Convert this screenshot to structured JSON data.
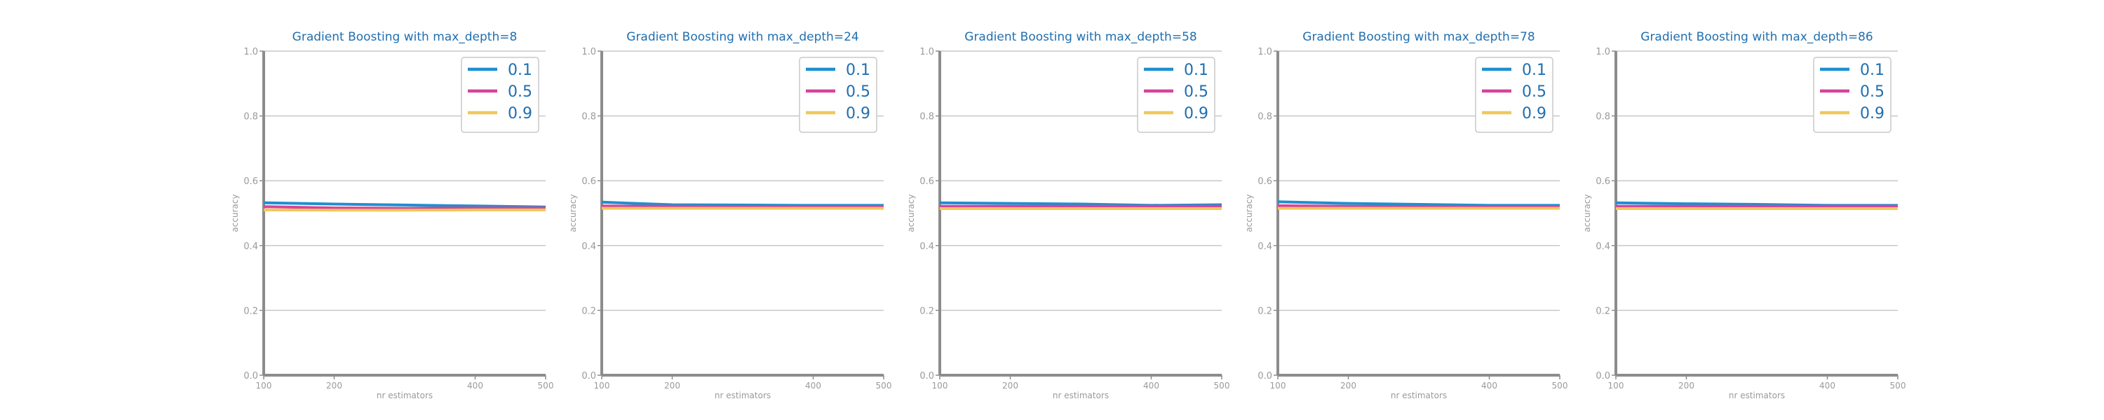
{
  "colors": {
    "title": "#1f6fb0",
    "tick": "#9a9a9a",
    "axis": "#8c8c8c",
    "grid": "#c8c8c8",
    "legend_text": "#1f6fb0",
    "legend_border": "#c9c9c9"
  },
  "chart_data": [
    {
      "type": "line",
      "title": "Gradient Boosting with max_depth=8",
      "xlabel": "nr estimators",
      "ylabel": "accuracy",
      "x": [
        100,
        200,
        300,
        400,
        500
      ],
      "xticks": [
        100,
        200,
        400,
        500
      ],
      "yticks": [
        "0.0",
        "0.2",
        "0.4",
        "0.6",
        "0.8",
        "1.0"
      ],
      "xlim": [
        100,
        500
      ],
      "ylim": [
        0,
        1
      ],
      "grid": "horizontal",
      "legend_position": "top-right",
      "series": [
        {
          "name": "0.1",
          "color": "#1f8fd0",
          "values": [
            0.532,
            0.528,
            0.525,
            0.522,
            0.519
          ]
        },
        {
          "name": "0.5",
          "color": "#d6449a",
          "values": [
            0.52,
            0.516,
            0.515,
            0.516,
            0.516
          ]
        },
        {
          "name": "0.9",
          "color": "#f0c85a",
          "values": [
            0.51,
            0.509,
            0.509,
            0.51,
            0.51
          ]
        }
      ]
    },
    {
      "type": "line",
      "title": "Gradient Boosting with max_depth=24",
      "xlabel": "nr estimators",
      "ylabel": "accuracy",
      "x": [
        100,
        200,
        300,
        400,
        500
      ],
      "xticks": [
        100,
        200,
        400,
        500
      ],
      "yticks": [
        "0.0",
        "0.2",
        "0.4",
        "0.6",
        "0.8",
        "1.0"
      ],
      "xlim": [
        100,
        500
      ],
      "ylim": [
        0,
        1
      ],
      "grid": "horizontal",
      "legend_position": "top-right",
      "series": [
        {
          "name": "0.1",
          "color": "#1f8fd0",
          "values": [
            0.534,
            0.526,
            0.525,
            0.524,
            0.524
          ]
        },
        {
          "name": "0.5",
          "color": "#d6449a",
          "values": [
            0.522,
            0.521,
            0.52,
            0.52,
            0.52
          ]
        },
        {
          "name": "0.9",
          "color": "#f0c85a",
          "values": [
            0.515,
            0.515,
            0.515,
            0.515,
            0.515
          ]
        }
      ]
    },
    {
      "type": "line",
      "title": "Gradient Boosting with max_depth=58",
      "xlabel": "nr estimators",
      "ylabel": "accuracy",
      "x": [
        100,
        200,
        300,
        400,
        500
      ],
      "xticks": [
        100,
        200,
        400,
        500
      ],
      "yticks": [
        "0.0",
        "0.2",
        "0.4",
        "0.6",
        "0.8",
        "1.0"
      ],
      "xlim": [
        100,
        500
      ],
      "ylim": [
        0,
        1
      ],
      "grid": "horizontal",
      "legend_position": "top-right",
      "series": [
        {
          "name": "0.1",
          "color": "#1f8fd0",
          "values": [
            0.532,
            0.53,
            0.528,
            0.524,
            0.526
          ]
        },
        {
          "name": "0.5",
          "color": "#d6449a",
          "values": [
            0.521,
            0.521,
            0.521,
            0.521,
            0.521
          ]
        },
        {
          "name": "0.9",
          "color": "#f0c85a",
          "values": [
            0.514,
            0.514,
            0.514,
            0.514,
            0.514
          ]
        }
      ]
    },
    {
      "type": "line",
      "title": "Gradient Boosting with max_depth=78",
      "xlabel": "nr estimators",
      "ylabel": "accuracy",
      "x": [
        100,
        200,
        300,
        400,
        500
      ],
      "xticks": [
        100,
        200,
        400,
        500
      ],
      "yticks": [
        "0.0",
        "0.2",
        "0.4",
        "0.6",
        "0.8",
        "1.0"
      ],
      "xlim": [
        100,
        500
      ],
      "ylim": [
        0,
        1
      ],
      "grid": "horizontal",
      "legend_position": "top-right",
      "series": [
        {
          "name": "0.1",
          "color": "#1f8fd0",
          "values": [
            0.535,
            0.53,
            0.527,
            0.524,
            0.524
          ]
        },
        {
          "name": "0.5",
          "color": "#d6449a",
          "values": [
            0.523,
            0.521,
            0.52,
            0.52,
            0.52
          ]
        },
        {
          "name": "0.9",
          "color": "#f0c85a",
          "values": [
            0.515,
            0.515,
            0.515,
            0.515,
            0.515
          ]
        }
      ]
    },
    {
      "type": "line",
      "title": "Gradient Boosting with max_depth=86",
      "xlabel": "nr estimators",
      "ylabel": "accuracy",
      "x": [
        100,
        200,
        300,
        400,
        500
      ],
      "xticks": [
        100,
        200,
        400,
        500
      ],
      "yticks": [
        "0.0",
        "0.2",
        "0.4",
        "0.6",
        "0.8",
        "1.0"
      ],
      "xlim": [
        100,
        500
      ],
      "ylim": [
        0,
        1
      ],
      "grid": "horizontal",
      "legend_position": "top-right",
      "series": [
        {
          "name": "0.1",
          "color": "#1f8fd0",
          "values": [
            0.532,
            0.529,
            0.527,
            0.524,
            0.524
          ]
        },
        {
          "name": "0.5",
          "color": "#d6449a",
          "values": [
            0.521,
            0.521,
            0.521,
            0.521,
            0.521
          ]
        },
        {
          "name": "0.9",
          "color": "#f0c85a",
          "values": [
            0.514,
            0.514,
            0.514,
            0.514,
            0.514
          ]
        }
      ]
    }
  ]
}
